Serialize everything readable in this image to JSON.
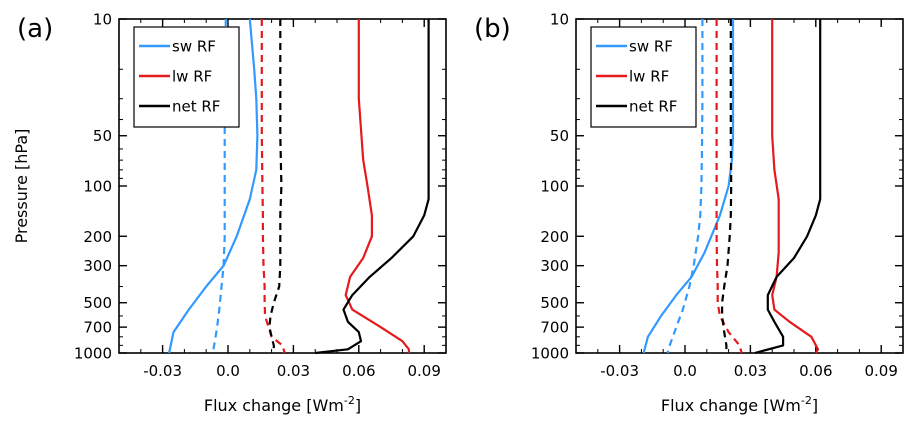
{
  "chart_data": [
    {
      "type": "line",
      "panel_label": "(a)",
      "xlabel": "Flux change [Wm",
      "xlabel_sup": "-2",
      "xlabel_end": "]",
      "ylabel": "Pressure [hPa]",
      "xlim": [
        -0.05,
        0.1
      ],
      "ylim": [
        1000,
        10
      ],
      "yscale": "log",
      "xticks": [
        -0.03,
        0.0,
        0.03,
        0.06,
        0.09
      ],
      "xtick_labels": [
        "-0.03",
        "0.0",
        "0.03",
        "0.06",
        "0.09"
      ],
      "yticks": [
        10,
        50,
        100,
        200,
        300,
        500,
        700,
        1000
      ],
      "ytick_labels": [
        "10",
        "50",
        "100",
        "200",
        "300",
        "500",
        "700",
        "1000"
      ],
      "legend": {
        "position": "top-left",
        "entries": [
          "sw RF",
          "lw RF",
          "net RF"
        ]
      },
      "series": [
        {
          "name": "sw RF",
          "style": "solid",
          "color": "#3399ff",
          "x": [
            0.01,
            0.012,
            0.013,
            0.0135,
            0.013,
            0.01,
            0.004,
            -0.002,
            -0.01,
            -0.018,
            -0.025,
            -0.027
          ],
          "p": [
            10,
            20,
            30,
            50,
            80,
            120,
            200,
            300,
            400,
            550,
            750,
            1000
          ]
        },
        {
          "name": "sw RF",
          "style": "dashed",
          "color": "#3399ff",
          "x": [
            -0.001,
            -0.0015,
            -0.0015,
            -0.0015,
            -0.0015,
            -0.002,
            -0.003,
            -0.004,
            -0.005,
            -0.006,
            -0.007
          ],
          "p": [
            10,
            30,
            60,
            100,
            200,
            300,
            400,
            550,
            700,
            850,
            1000
          ]
        },
        {
          "name": "lw RF",
          "style": "solid",
          "color": "#e41a1c",
          "x": [
            0.06,
            0.06,
            0.062,
            0.064,
            0.066,
            0.066,
            0.062,
            0.056,
            0.054,
            0.057,
            0.07,
            0.08,
            0.083,
            0.083
          ],
          "p": [
            10,
            30,
            70,
            100,
            150,
            200,
            270,
            350,
            450,
            550,
            700,
            850,
            950,
            1000
          ]
        },
        {
          "name": "lw RF",
          "style": "dashed",
          "color": "#e41a1c",
          "x": [
            0.0155,
            0.0155,
            0.0158,
            0.016,
            0.016,
            0.0163,
            0.0168,
            0.0168,
            0.017,
            0.02,
            0.025,
            0.026
          ],
          "p": [
            10,
            50,
            100,
            150,
            200,
            300,
            400,
            500,
            600,
            800,
            900,
            1000
          ]
        },
        {
          "name": "net RF",
          "style": "solid",
          "color": "#000000",
          "x": [
            0.092,
            0.092,
            0.092,
            0.092,
            0.09,
            0.085,
            0.075,
            0.065,
            0.057,
            0.053,
            0.055,
            0.06,
            0.061,
            0.055,
            0.04
          ],
          "p": [
            10,
            50,
            100,
            120,
            150,
            200,
            270,
            350,
            450,
            550,
            650,
            750,
            850,
            950,
            1000
          ]
        },
        {
          "name": "net RF",
          "style": "dashed",
          "color": "#000000",
          "x": [
            0.024,
            0.024,
            0.0245,
            0.024,
            0.024,
            0.024,
            0.0235,
            0.021,
            0.0195,
            0.019,
            0.02,
            0.021,
            0.021
          ],
          "p": [
            10,
            50,
            100,
            150,
            200,
            300,
            400,
            500,
            600,
            700,
            800,
            900,
            1000
          ]
        }
      ]
    },
    {
      "type": "line",
      "panel_label": "(b)",
      "xlabel": "Flux change [Wm",
      "xlabel_sup": "-2",
      "xlabel_end": "]",
      "ylabel": "",
      "xlim": [
        -0.05,
        0.1
      ],
      "ylim": [
        1000,
        10
      ],
      "yscale": "log",
      "xticks": [
        -0.03,
        0.0,
        0.03,
        0.06,
        0.09
      ],
      "xtick_labels": [
        "-0.03",
        "0.0",
        "0.03",
        "0.06",
        "0.09"
      ],
      "yticks": [
        10,
        50,
        100,
        200,
        300,
        500,
        700,
        1000
      ],
      "ytick_labels": [
        "10",
        "50",
        "100",
        "200",
        "300",
        "500",
        "700",
        "1000"
      ],
      "legend": {
        "position": "top-left",
        "entries": [
          "sw RF",
          "lw RF",
          "net RF"
        ]
      },
      "series": [
        {
          "name": "sw RF",
          "style": "solid",
          "color": "#3399ff",
          "x": [
            0.022,
            0.022,
            0.022,
            0.0215,
            0.02,
            0.016,
            0.009,
            0.003,
            -0.004,
            -0.011,
            -0.017,
            -0.019
          ],
          "p": [
            10,
            30,
            50,
            70,
            100,
            150,
            250,
            350,
            450,
            600,
            800,
            1000
          ]
        },
        {
          "name": "sw RF",
          "style": "dashed",
          "color": "#3399ff",
          "x": [
            0.008,
            0.008,
            0.0078,
            0.0075,
            0.007,
            0.006,
            0.004,
            0.002,
            -0.001,
            -0.004,
            -0.007,
            -0.008
          ],
          "p": [
            10,
            30,
            60,
            100,
            150,
            200,
            300,
            400,
            550,
            700,
            900,
            1000
          ]
        },
        {
          "name": "lw RF",
          "style": "solid",
          "color": "#e41a1c",
          "x": [
            0.04,
            0.04,
            0.041,
            0.043,
            0.043,
            0.043,
            0.042,
            0.04,
            0.041,
            0.048,
            0.058,
            0.061,
            0.06
          ],
          "p": [
            10,
            50,
            80,
            120,
            200,
            250,
            350,
            450,
            550,
            650,
            800,
            950,
            1000
          ]
        },
        {
          "name": "lw RF",
          "style": "dashed",
          "color": "#e41a1c",
          "x": [
            0.0145,
            0.0145,
            0.0145,
            0.0145,
            0.0145,
            0.0147,
            0.015,
            0.015,
            0.016,
            0.02,
            0.025,
            0.026
          ],
          "p": [
            10,
            50,
            100,
            150,
            200,
            300,
            400,
            500,
            600,
            750,
            900,
            1000
          ]
        },
        {
          "name": "net RF",
          "style": "solid",
          "color": "#000000",
          "x": [
            0.062,
            0.062,
            0.062,
            0.062,
            0.06,
            0.056,
            0.05,
            0.042,
            0.038,
            0.038,
            0.041,
            0.045,
            0.045,
            0.032
          ],
          "p": [
            10,
            50,
            100,
            120,
            150,
            200,
            270,
            350,
            450,
            550,
            650,
            800,
            900,
            1000
          ]
        },
        {
          "name": "net RF",
          "style": "dashed",
          "color": "#000000",
          "x": [
            0.021,
            0.021,
            0.0212,
            0.021,
            0.0205,
            0.0195,
            0.018,
            0.017,
            0.017,
            0.018,
            0.019,
            0.019
          ],
          "p": [
            10,
            50,
            100,
            150,
            200,
            300,
            400,
            500,
            600,
            750,
            900,
            1000
          ]
        }
      ]
    }
  ]
}
